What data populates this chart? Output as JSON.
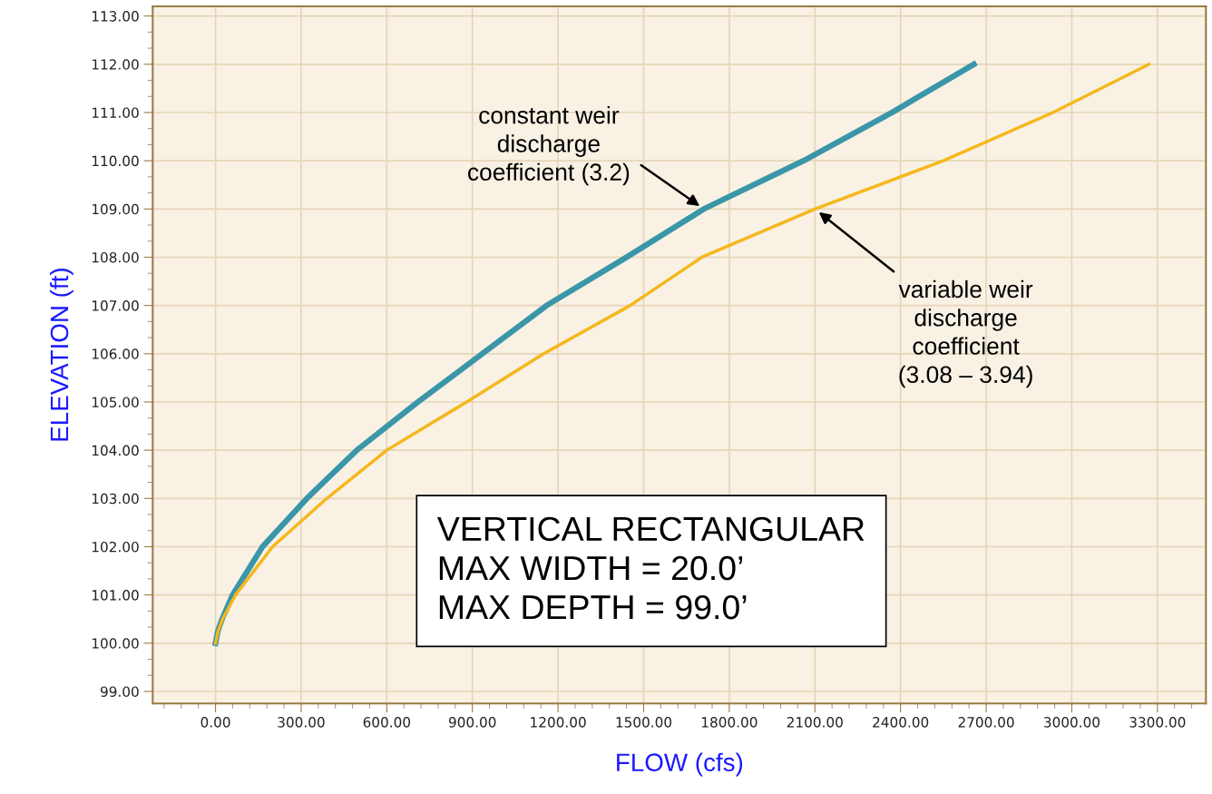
{
  "chart_data": {
    "type": "line",
    "xlabel": "FLOW (cfs)",
    "ylabel": "ELEVATION (ft)",
    "series": [
      {
        "color": "#3a96a8",
        "x": [
          0,
          8,
          23,
          60,
          165,
          320,
          495,
          709,
          935,
          1160,
          1440,
          1711,
          2060,
          2370,
          2657
        ],
        "values": [
          100,
          100.25,
          100.5,
          101,
          102,
          103,
          104,
          105,
          106,
          107,
          108,
          109,
          110,
          111,
          112
        ]
      },
      {
        "color": "#f5b71c",
        "x": [
          0,
          9,
          25,
          70,
          200,
          390,
          600,
          880,
          1150,
          1453,
          1704,
          2100,
          2550,
          2934,
          3271
        ],
        "values": [
          100,
          100.25,
          100.5,
          101,
          102,
          103,
          104,
          105,
          106,
          107,
          108,
          109,
          110,
          111,
          112
        ]
      }
    ],
    "xlim": [
      -220,
      3470
    ],
    "ylim": [
      98.75,
      113.2
    ],
    "xticks": [
      {
        "value": 0,
        "label": "0.00"
      },
      {
        "value": 300,
        "label": "300.00"
      },
      {
        "value": 600,
        "label": "600.00"
      },
      {
        "value": 900,
        "label": "900.00"
      },
      {
        "value": 1200,
        "label": "1200.00"
      },
      {
        "value": 1500,
        "label": "1500.00"
      },
      {
        "value": 1800,
        "label": "1800.00"
      },
      {
        "value": 2100,
        "label": "2100.00"
      },
      {
        "value": 2400,
        "label": "2400.00"
      },
      {
        "value": 2700,
        "label": "2700.00"
      },
      {
        "value": 3000,
        "label": "3000.00"
      },
      {
        "value": 3300,
        "label": "3300.00"
      }
    ],
    "yticks": [
      {
        "value": 99,
        "label": "99.00"
      },
      {
        "value": 100,
        "label": "100.00"
      },
      {
        "value": 101,
        "label": "101.00"
      },
      {
        "value": 102,
        "label": "102.00"
      },
      {
        "value": 103,
        "label": "103.00"
      },
      {
        "value": 104,
        "label": "104.00"
      },
      {
        "value": 105,
        "label": "105.00"
      },
      {
        "value": 106,
        "label": "106.00"
      },
      {
        "value": 107,
        "label": "107.00"
      },
      {
        "value": 108,
        "label": "108.00"
      },
      {
        "value": 109,
        "label": "109.00"
      },
      {
        "value": 110,
        "label": "110.00"
      },
      {
        "value": 111,
        "label": "111.00"
      },
      {
        "value": 112,
        "label": "112.00"
      },
      {
        "value": 113,
        "label": "113.00"
      }
    ],
    "grid": true,
    "annotations": [
      {
        "text": "constant weir\ndischarge\ncoefficient (3.2)",
        "x": 1711,
        "y": 109
      },
      {
        "text": "variable weir\ndischarge\ncoefficient\n(3.08 – 3.94)",
        "x": 2100,
        "y": 109
      },
      "VERTICAL RECTANGULAR\nMAX WIDTH = 20.0’\nMAX DEPTH = 99.0’"
    ]
  }
}
